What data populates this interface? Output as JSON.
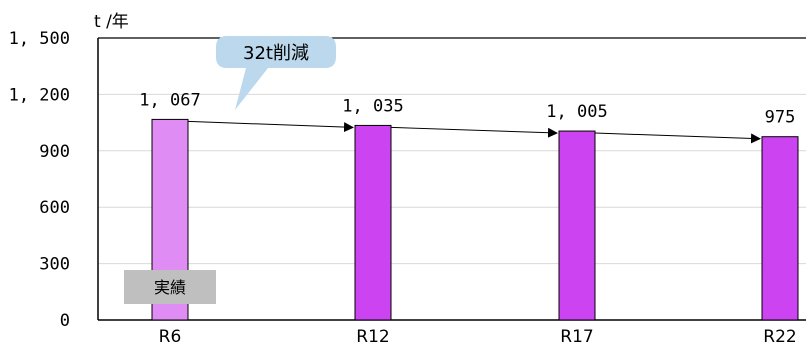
{
  "chart_data": {
    "type": "bar",
    "categories": [
      "R6",
      "R12",
      "R17",
      "R22"
    ],
    "values": [
      1067,
      1035,
      1005,
      975
    ],
    "data_labels": [
      "1, 067",
      "1, 035",
      "1, 005",
      "975"
    ],
    "ylim": [
      0,
      1500
    ],
    "yticks": [
      0,
      300,
      600,
      900,
      1200,
      1500
    ],
    "ytick_labels": [
      "0",
      "300",
      "600",
      "900",
      "1, 200",
      "1, 500"
    ],
    "unit_label": "t /年",
    "grid": true,
    "colors": {
      "actual_bar": "#e08cf5",
      "forecast_bar": "#cc44f2",
      "callout_fill": "#bcd8ed",
      "badge_fill": "#bfbfbf",
      "grid": "#d9d9d9"
    },
    "annotations": {
      "callout": "32t削減",
      "actual_badge": "実績"
    }
  }
}
